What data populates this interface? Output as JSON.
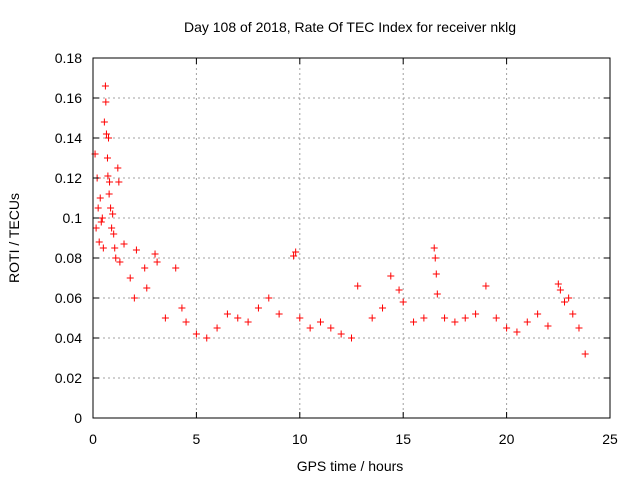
{
  "chart_data": {
    "type": "scatter",
    "title": "Day 108 of 2018, Rate Of TEC Index for receiver nklg",
    "xlabel": "GPS time / hours",
    "ylabel": "ROTI / TECUs",
    "xlim": [
      0,
      25
    ],
    "ylim": [
      0,
      0.18
    ],
    "xticks": [
      0,
      5,
      10,
      15,
      20,
      25
    ],
    "xtick_labels": [
      "0",
      "5",
      "10",
      "15",
      "20",
      "25"
    ],
    "yticks": [
      0,
      0.02,
      0.04,
      0.06,
      0.08,
      0.1,
      0.12,
      0.14,
      0.16,
      0.18
    ],
    "ytick_labels": [
      "0",
      "0.02",
      "0.04",
      "0.06",
      "0.08",
      "0.1",
      "0.12",
      "0.14",
      "0.16",
      "0.18"
    ],
    "grid": true,
    "marker": "+",
    "series": [
      {
        "name": "ROTI",
        "color": "#ff0000",
        "points": [
          [
            0.1,
            0.132
          ],
          [
            0.15,
            0.095
          ],
          [
            0.2,
            0.12
          ],
          [
            0.25,
            0.105
          ],
          [
            0.3,
            0.088
          ],
          [
            0.35,
            0.11
          ],
          [
            0.4,
            0.098
          ],
          [
            0.45,
            0.1
          ],
          [
            0.5,
            0.085
          ],
          [
            0.55,
            0.148
          ],
          [
            0.6,
            0.166
          ],
          [
            0.62,
            0.158
          ],
          [
            0.65,
            0.142
          ],
          [
            0.7,
            0.13
          ],
          [
            0.72,
            0.121
          ],
          [
            0.75,
            0.14
          ],
          [
            0.78,
            0.112
          ],
          [
            0.8,
            0.118
          ],
          [
            0.85,
            0.105
          ],
          [
            0.9,
            0.095
          ],
          [
            0.95,
            0.102
          ],
          [
            1.0,
            0.092
          ],
          [
            1.05,
            0.085
          ],
          [
            1.1,
            0.08
          ],
          [
            1.2,
            0.125
          ],
          [
            1.25,
            0.118
          ],
          [
            1.3,
            0.078
          ],
          [
            1.5,
            0.087
          ],
          [
            1.8,
            0.07
          ],
          [
            2.0,
            0.06
          ],
          [
            2.1,
            0.084
          ],
          [
            2.5,
            0.075
          ],
          [
            2.6,
            0.065
          ],
          [
            3.0,
            0.082
          ],
          [
            3.1,
            0.078
          ],
          [
            3.5,
            0.05
          ],
          [
            4.0,
            0.075
          ],
          [
            4.3,
            0.055
          ],
          [
            4.5,
            0.048
          ],
          [
            5.0,
            0.042
          ],
          [
            5.5,
            0.04
          ],
          [
            6.0,
            0.045
          ],
          [
            6.5,
            0.052
          ],
          [
            7.0,
            0.05
          ],
          [
            7.5,
            0.048
          ],
          [
            8.0,
            0.055
          ],
          [
            8.5,
            0.06
          ],
          [
            9.0,
            0.052
          ],
          [
            9.7,
            0.081
          ],
          [
            9.8,
            0.083
          ],
          [
            10.0,
            0.05
          ],
          [
            10.5,
            0.045
          ],
          [
            11.0,
            0.048
          ],
          [
            11.5,
            0.045
          ],
          [
            12.0,
            0.042
          ],
          [
            12.5,
            0.04
          ],
          [
            12.8,
            0.066
          ],
          [
            13.5,
            0.05
          ],
          [
            14.0,
            0.055
          ],
          [
            14.4,
            0.071
          ],
          [
            14.8,
            0.064
          ],
          [
            15.0,
            0.058
          ],
          [
            15.5,
            0.048
          ],
          [
            16.0,
            0.05
          ],
          [
            16.5,
            0.085
          ],
          [
            16.55,
            0.08
          ],
          [
            16.6,
            0.072
          ],
          [
            16.65,
            0.062
          ],
          [
            17.0,
            0.05
          ],
          [
            17.5,
            0.048
          ],
          [
            18.0,
            0.05
          ],
          [
            18.5,
            0.052
          ],
          [
            19.0,
            0.066
          ],
          [
            19.5,
            0.05
          ],
          [
            20.0,
            0.045
          ],
          [
            20.5,
            0.043
          ],
          [
            21.0,
            0.048
          ],
          [
            21.5,
            0.052
          ],
          [
            22.0,
            0.046
          ],
          [
            22.5,
            0.067
          ],
          [
            22.6,
            0.064
          ],
          [
            22.8,
            0.058
          ],
          [
            23.0,
            0.06
          ],
          [
            23.2,
            0.052
          ],
          [
            23.5,
            0.045
          ],
          [
            23.8,
            0.032
          ]
        ]
      }
    ]
  }
}
